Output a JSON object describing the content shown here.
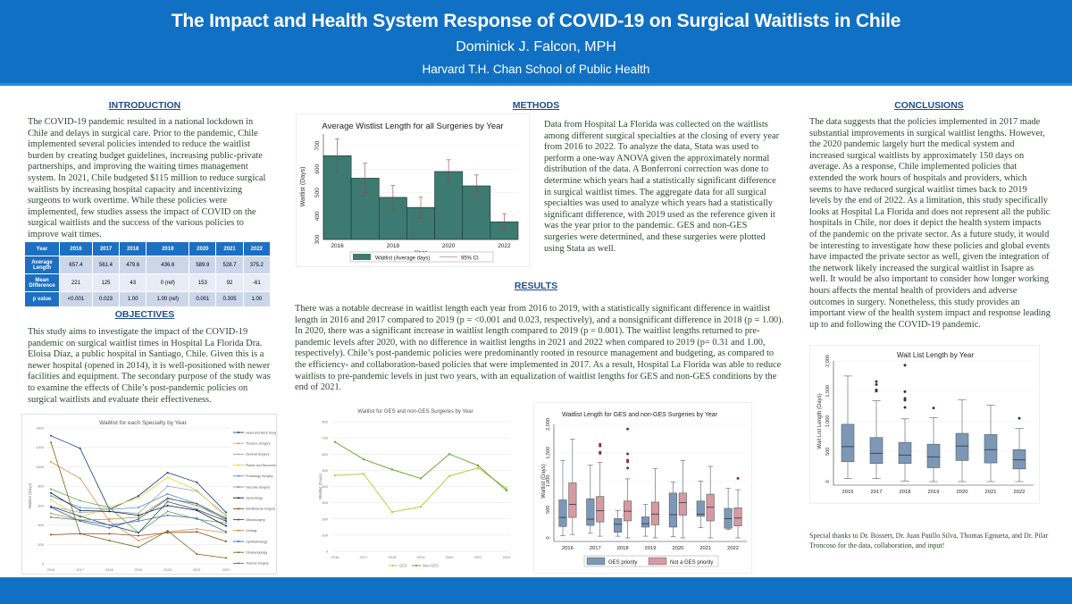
{
  "header": {
    "title": "The Impact and Health System Response of COVID-19 on Surgical Waitlists in Chile",
    "author": "Dominick J. Falcon, MPH",
    "affiliation": "Harvard T.H. Chan School of Public Health"
  },
  "introduction": {
    "heading": "INTRODUCTION",
    "text": "The COVID-19 pandemic resulted in a national lockdown in Chile and delays in surgical care. Prior to the pandemic, Chile implemented several policies intended to reduce the waitlist burden by creating budget guidelines, increasing public-private partnerships, and improving the waiting times management system. In 2021, Chile budgeted $115 million to reduce surgical waitlists by increasing hospital capacity and incentivizing surgeons to work overtime. While these policies were implemented, few studies assess the impact of COVID on the surgical waitlists and the success of the various policies to improve wait times."
  },
  "stats_table": {
    "header": [
      "Year",
      "2016",
      "2017",
      "2018",
      "2019",
      "2020",
      "2021",
      "2022"
    ],
    "rows": [
      {
        "label": "Average Length",
        "values": [
          "657.4",
          "561.4",
          "479.6",
          "436.6",
          "589.9",
          "528.7",
          "375.2"
        ]
      },
      {
        "label": "Mean Difference",
        "values": [
          "221",
          "125",
          "43",
          "0 (ref)",
          "153",
          "92",
          "-61"
        ]
      },
      {
        "label": "p value",
        "values": [
          "<0.001",
          "0.023",
          "1.00",
          "1.00 (ref)",
          "0.001",
          "0.305",
          "1.00"
        ]
      }
    ]
  },
  "objectives": {
    "heading": "OBJECTIVES",
    "text": "This study aims to investigate the impact of the COVID-19 pandemic on surgical waitlist times in Hospital La Florida Dra. Eloisa Díaz, a public hospital in Santiago, Chile. Given this is a newer hospital (opened in 2014), it is well-positioned with newer facilities and equipment. The secondary purpose of the study was to examine the effects of Chile’s post-pandemic policies on surgical waitlists and evaluate their effectiveness."
  },
  "methods": {
    "heading": "METHODS",
    "text": "Data from Hospital La Florida was collected on the waitlists among different surgical specialties at the closing of every year from 2016 to 2022. To analyze the data, Stata was used to perform a one-way ANOVA given the approximately normal distribution of the data. A Bonferroni correction was done to determine which years had a statistically significant difference in surgical waitlist times. The aggregate data for all surgical specialties was used to analyze which years had a statistically significant difference, with 2019 used as the reference given it was the year prior to the pandemic. GES and non-GES surgeries were determined, and these surgeries were plotted using Stata as well."
  },
  "results": {
    "heading": "RESULTS",
    "text": "There was a notable decrease in waitlist length each year from 2016 to 2019, with a statistically significant difference in waitlist length in 2016 and 2017 compared to 2019 (p = <0.001 and 0.023, respectively), and a nonsignificant difference in 2018 (p = 1.00). In 2020, there was a significant increase in waitlist length compared to 2019 (p = 0.001). The waitlist lengths returned to pre-pandemic levels after 2020, with no difference in waitlist lengths in 2021 and 2022 when compared to 2019 (p= 0.31 and 1.00, respectively). Chile’s post-pandemic policies were predominantly rooted in resource management and budgeting, as compared to the efficiency- and collaboration-based policies that were implemented in 2017. As a result, Hospital La Florida was able to reduce waitlists to pre-pandemic levels in just two years, with an equalization of waitlist lengths for GES and non-GES conditions by the end of 2021."
  },
  "conclusions": {
    "heading": "CONCLUSIONS",
    "text": "The data suggests that the policies implemented in 2017 made substantial improvements in surgical waitlist lengths. However, the 2020 pandemic largely hurt the medical system and increased surgical waitlists by approximately 150 days on average. As a response, Chile implemented policies that extended the work hours of hospitals and providers, which seems to have reduced surgical waitlist times back to 2019 levels by the end of 2022. As a limitation, this study specifically looks at Hospital La Florida and does not represent all the public hospitals in Chile, nor does it depict the health system impacts of the pandemic on the private sector. As a future study, it would be interesting to investigate how these policies and global events have impacted the private sector as well, given the integration of the network likely increased the surgical waitlist in Isapre as well. It would be also important to consider how longer working hours affects the mental health of providers and adverse outcomes in surgery. Nonetheless, this study provides an important view of the health system impact and response leading up to and following the COVID-19 pandemic."
  },
  "acknowledgments": "Special thanks to Dr. Bossert, Dr. Juan Patillo Silva, Thomas Egnueta, and Dr. Pilar Troncoso for the data, collaboration, and input!",
  "colors": {
    "header_blue": "#1070c4",
    "heading_blue": "#1f4e8c",
    "bar_teal": "#3d7a72",
    "box_blue": "#7d98b6",
    "box_red": "#d69aa0",
    "ges_line": "#b8cf3a",
    "nonges_line": "#6aaa3a"
  },
  "chart_data": [
    {
      "id": "avg-waitlist-bar",
      "type": "bar",
      "title": "Average Wistlist Length for all Surgeries by Year",
      "xlabel": "Year",
      "ylabel": "Waitlist (Days)",
      "categories": [
        "2016",
        "2017",
        "2018",
        "2019",
        "2020",
        "2021",
        "2022"
      ],
      "values": [
        657.4,
        561.4,
        479.6,
        436.6,
        589.9,
        528.7,
        375.2
      ],
      "ci_low": [
        585,
        500,
        430,
        390,
        540,
        480,
        340
      ],
      "ci_high": [
        730,
        625,
        530,
        480,
        640,
        575,
        410
      ],
      "ylim": [
        300,
        750
      ],
      "yticks": [
        300,
        400,
        500,
        600,
        700
      ],
      "xticks": [
        "2016",
        "2018",
        "2020",
        "2022"
      ],
      "legend": [
        "Waitlist (Average days)",
        "95% CI"
      ]
    },
    {
      "id": "specialty-line",
      "type": "line",
      "title": "Waitlist for each Specialty by Year",
      "xlabel": "",
      "ylabel": "Waitlist (Days)",
      "x": [
        "2016",
        "2017",
        "2018",
        "2019",
        "2020",
        "2021",
        "2022"
      ],
      "ylim": [
        0,
        1400
      ],
      "yticks": [
        0,
        200,
        400,
        600,
        800,
        1000,
        1200,
        1400
      ],
      "legend_position": "right",
      "series": [
        {
          "name": "Head and Neck Surgery",
          "color": "#1f3f6e",
          "values": [
            1320,
            1190,
            560,
            700,
            940,
            840,
            530
          ]
        },
        {
          "name": "Thoracic Surgery",
          "color": "#e0904a",
          "values": [
            1050,
            880,
            440,
            240,
            330,
            360,
            320
          ]
        },
        {
          "name": "General Surgery",
          "color": "#9aa6b8",
          "values": [
            590,
            530,
            540,
            520,
            800,
            750,
            500
          ]
        },
        {
          "name": "Plastic and Reconstructive Surgery",
          "color": "#e6d23a",
          "values": [
            660,
            480,
            580,
            680,
            890,
            760,
            480
          ]
        },
        {
          "name": "Proctology Surgery",
          "color": "#5b8fd0",
          "values": [
            700,
            580,
            560,
            580,
            720,
            620,
            450
          ]
        },
        {
          "name": "Vascular Surgery",
          "color": "#6aa84f",
          "values": [
            770,
            650,
            580,
            320,
            540,
            460,
            420
          ]
        },
        {
          "name": "Gynecology",
          "color": "#0d1d3a",
          "values": [
            730,
            550,
            540,
            500,
            600,
            550,
            390
          ]
        },
        {
          "name": "Maxillofacial Surgery",
          "color": "#8a4a1c",
          "values": [
            300,
            310,
            310,
            290,
            320,
            330,
            230
          ]
        },
        {
          "name": "Neurosurgery",
          "color": "#2a4a7a",
          "values": [
            590,
            490,
            400,
            320,
            640,
            560,
            440
          ]
        },
        {
          "name": "Urology",
          "color": "#c08a2a",
          "values": [
            520,
            450,
            460,
            480,
            680,
            600,
            460
          ]
        },
        {
          "name": "Ophthalmology",
          "color": "#2e6ca8",
          "values": [
            580,
            440,
            370,
            460,
            670,
            620,
            470
          ]
        },
        {
          "name": "Otolaryngology",
          "color": "#6b6a1a",
          "values": [
            1250,
            310,
            240,
            170,
            340,
            100,
            60
          ]
        },
        {
          "name": "Trauma Surgery",
          "color": "#4a6fa8",
          "values": [
            480,
            450,
            400,
            440,
            500,
            470,
            330
          ]
        }
      ]
    },
    {
      "id": "ges-line",
      "type": "line",
      "title": "Waitlist for GES and non-GES Surgeries by Year",
      "xlabel": "",
      "ylabel": "Waitlist (Days)",
      "x": [
        "2016",
        "2017",
        "2018",
        "2019",
        "2020",
        "2021",
        "2022"
      ],
      "ylim": [
        0,
        800
      ],
      "yticks": [
        0,
        100,
        200,
        300,
        400,
        500,
        600,
        700,
        800
      ],
      "legend_position": "bottom",
      "series": [
        {
          "name": "GES",
          "color": "#b8cf3a",
          "values": [
            468,
            478,
            242,
            275,
            465,
            515,
            388
          ]
        },
        {
          "name": "Non-GES",
          "color": "#6aaa3a",
          "values": [
            675,
            568,
            505,
            450,
            600,
            530,
            375
          ]
        }
      ]
    },
    {
      "id": "ges-box",
      "type": "box",
      "title": "Waitlist Length for GES and non-GES Surgeries by Year",
      "xlabel": "",
      "ylabel": "Waitlist (Days)",
      "categories": [
        "2016",
        "2017",
        "2018",
        "2019",
        "2020",
        "2021",
        "2022"
      ],
      "ylim": [
        0,
        2000
      ],
      "yticks": [
        0,
        500,
        1000,
        1500,
        2000
      ],
      "ytick_labels": [
        "0",
        "500",
        "1,000",
        "1,500",
        "2,000"
      ],
      "legend": [
        "GES priority",
        "Not a GES priority"
      ],
      "series": [
        {
          "name": "GES priority",
          "color": "#7d98b6",
          "boxes": [
            {
              "lo": 40,
              "q1": 200,
              "med": 360,
              "q3": 670,
              "hi": 1360,
              "out": []
            },
            {
              "lo": 80,
              "q1": 220,
              "med": 330,
              "q3": 690,
              "hi": 1280,
              "out": []
            },
            {
              "lo": 30,
              "q1": 100,
              "med": 240,
              "q3": 340,
              "hi": 480,
              "out": []
            },
            {
              "lo": 30,
              "q1": 190,
              "med": 250,
              "q3": 370,
              "hi": 590,
              "out": []
            },
            {
              "lo": 20,
              "q1": 190,
              "med": 410,
              "q3": 790,
              "hi": 980,
              "out": []
            },
            {
              "lo": 180,
              "q1": 380,
              "med": 420,
              "q3": 650,
              "hi": 1000,
              "out": []
            },
            {
              "lo": 150,
              "q1": 170,
              "med": 340,
              "q3": 520,
              "hi": 870,
              "out": []
            }
          ]
        },
        {
          "name": "Not a GES priority",
          "color": "#d69aa0",
          "boxes": [
            {
              "lo": 60,
              "q1": 360,
              "med": 590,
              "q3": 970,
              "hi": 1740,
              "out": []
            },
            {
              "lo": 30,
              "q1": 280,
              "med": 480,
              "q3": 730,
              "hi": 1330,
              "out": [
                1490,
                1510,
                1620,
                1650
              ]
            },
            {
              "lo": 0,
              "q1": 300,
              "med": 470,
              "q3": 650,
              "hi": 1040,
              "out": [
                1230,
                1340,
                1370,
                1480,
                1920
              ]
            },
            {
              "lo": 0,
              "q1": 230,
              "med": 420,
              "q3": 630,
              "hi": 1220,
              "out": []
            },
            {
              "lo": 0,
              "q1": 400,
              "med": 620,
              "q3": 790,
              "hi": 1360,
              "out": []
            },
            {
              "lo": 0,
              "q1": 300,
              "med": 540,
              "q3": 770,
              "hi": 1260,
              "out": []
            },
            {
              "lo": 0,
              "q1": 210,
              "med": 350,
              "q3": 530,
              "hi": 850,
              "out": [
                1050
              ]
            }
          ]
        }
      ]
    },
    {
      "id": "overall-box",
      "type": "box",
      "title": "Wait List Length by Year",
      "xlabel": "",
      "ylabel": "Wait List Length (Days)",
      "categories": [
        "2016",
        "2017",
        "2018",
        "2019",
        "2020",
        "2021",
        "2022"
      ],
      "ylim": [
        0,
        2000
      ],
      "yticks": [
        0,
        500,
        1000,
        1500,
        2000
      ],
      "ytick_labels": [
        "0",
        "500",
        "1,000",
        "1,500",
        "2,000"
      ],
      "series": [
        {
          "name": "Wait List Length",
          "color": "#7d98b6",
          "boxes": [
            {
              "lo": 50,
              "q1": 330,
              "med": 580,
              "q3": 950,
              "hi": 1750,
              "out": []
            },
            {
              "lo": 50,
              "q1": 300,
              "med": 470,
              "q3": 730,
              "hi": 1340,
              "out": [
                1500,
                1520,
                1610,
                1660
              ]
            },
            {
              "lo": 10,
              "q1": 300,
              "med": 440,
              "q3": 650,
              "hi": 1040,
              "out": [
                1230,
                1350,
                1380,
                1490,
                1930
              ]
            },
            {
              "lo": 0,
              "q1": 230,
              "med": 410,
              "q3": 620,
              "hi": 1060,
              "out": [
                1220
              ]
            },
            {
              "lo": 0,
              "q1": 350,
              "med": 590,
              "q3": 800,
              "hi": 1360,
              "out": []
            },
            {
              "lo": 0,
              "q1": 310,
              "med": 530,
              "q3": 780,
              "hi": 1270,
              "out": []
            },
            {
              "lo": 0,
              "q1": 210,
              "med": 360,
              "q3": 530,
              "hi": 880,
              "out": [
                1050
              ]
            }
          ]
        }
      ]
    }
  ]
}
